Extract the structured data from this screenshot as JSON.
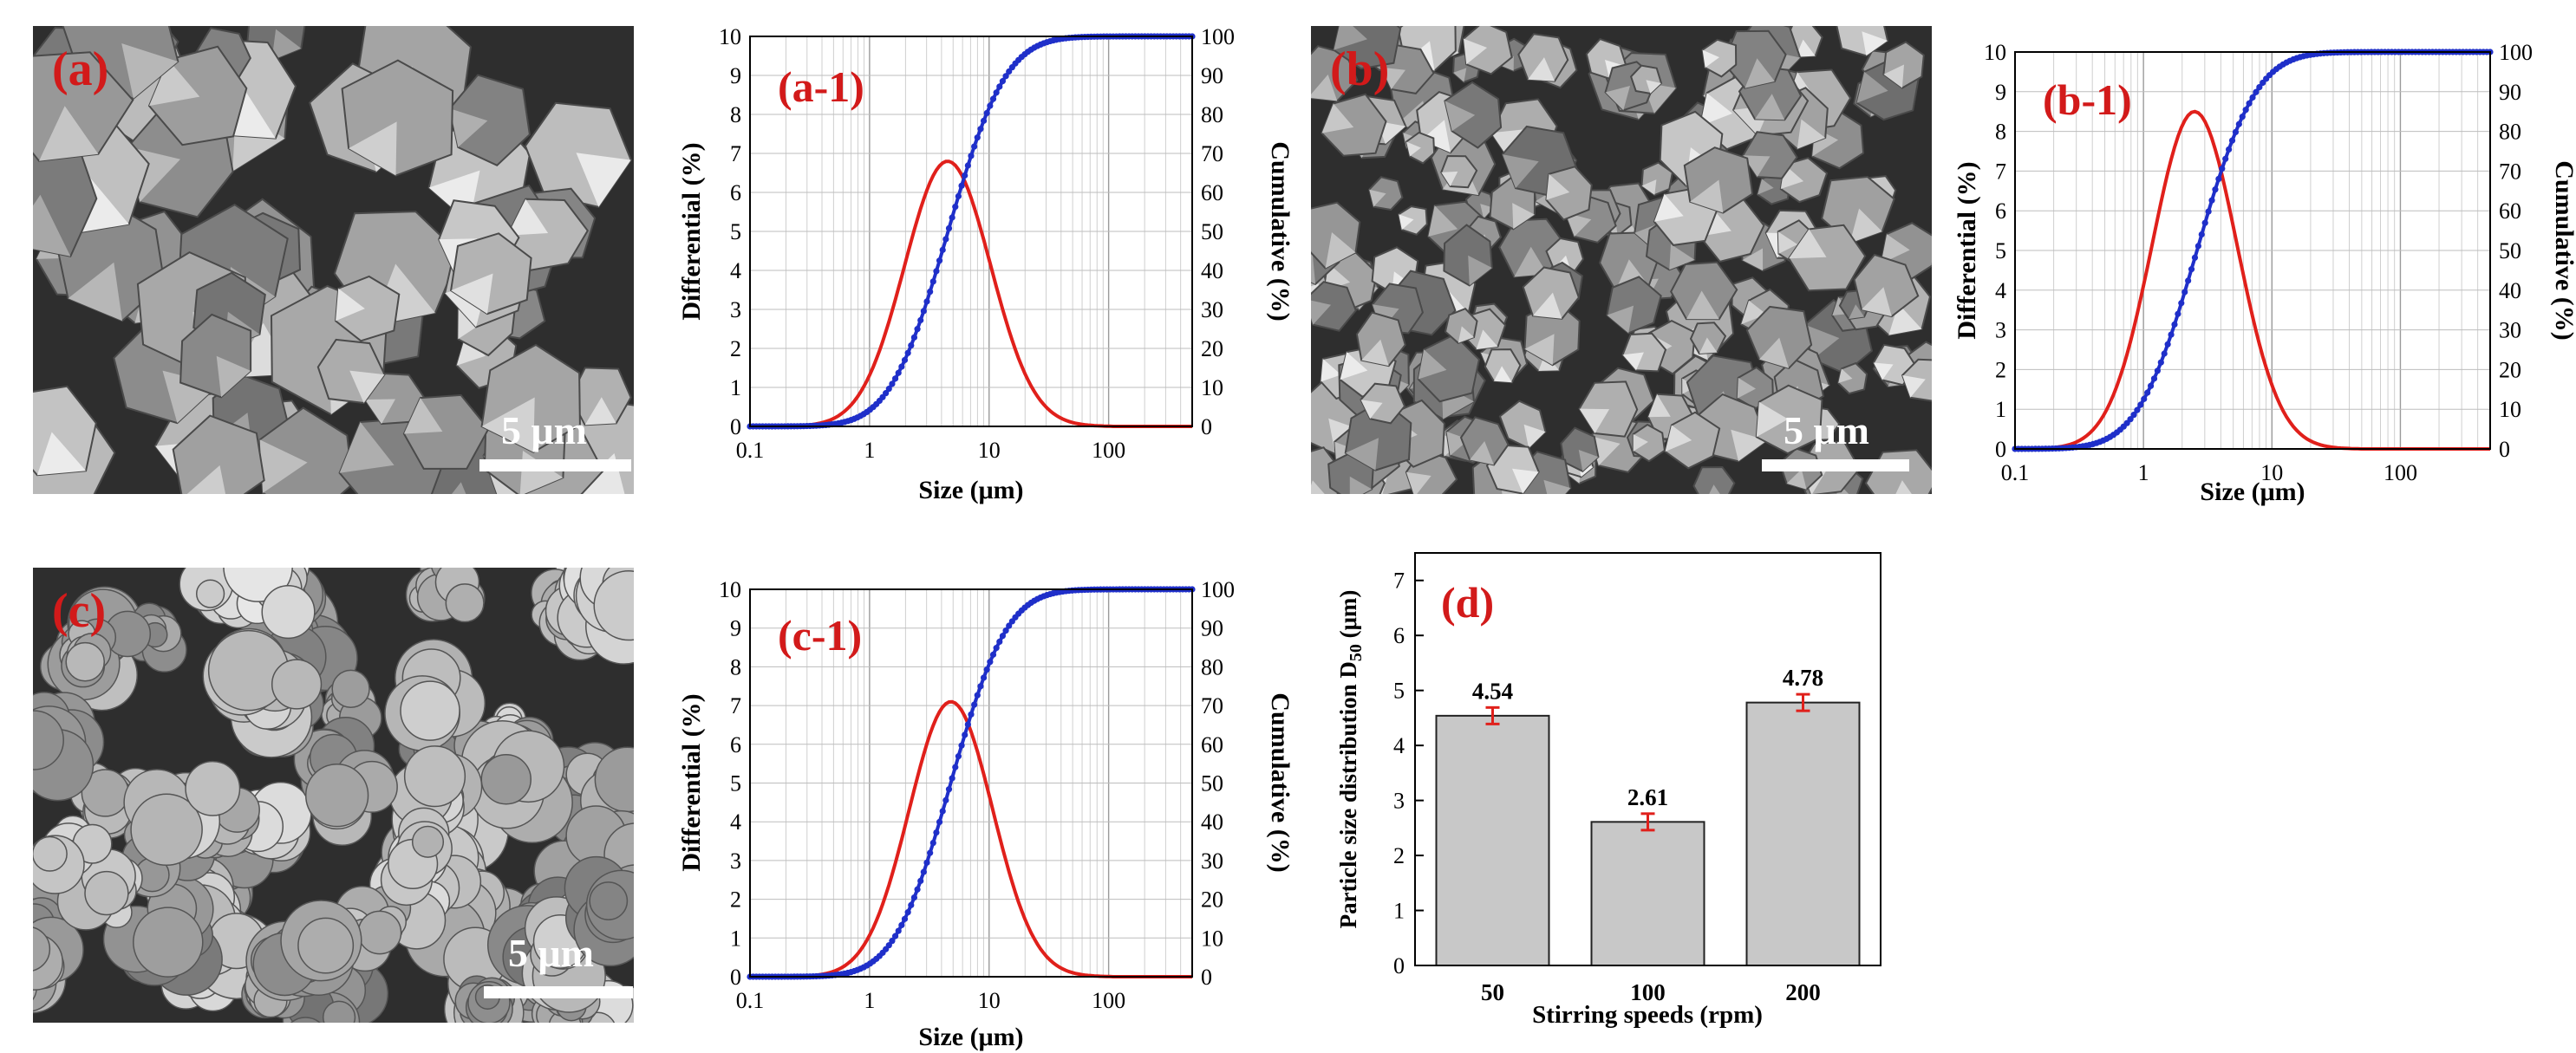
{
  "sem_images": [
    {
      "label": "(a)",
      "scale_bar": "5 μm",
      "morphology": "polyhedral"
    },
    {
      "label": "(b)",
      "scale_bar": "5 μm",
      "morphology": "small-polyhedral"
    },
    {
      "label": "(c)",
      "scale_bar": "5 μm",
      "morphology": "clustered"
    }
  ],
  "chart_data": [
    {
      "id": "a1",
      "type": "line",
      "label": "(a-1)",
      "xlabel": "Size (μm)",
      "ylabel_left": "Differential (%)",
      "ylabel_right": "Cumulative (%)",
      "xscale": "log",
      "xlim": [
        0.1,
        500
      ],
      "ylim_left": [
        0,
        10
      ],
      "ylim_right": [
        0,
        100
      ],
      "x_ticks": [
        "0.1",
        "1",
        "10",
        "100"
      ],
      "grid": true,
      "y_left_ticks": [
        "0",
        "1",
        "2",
        "3",
        "4",
        "5",
        "6",
        "7",
        "8",
        "9",
        "10"
      ],
      "y_right_ticks": [
        "0",
        "10",
        "20",
        "30",
        "40",
        "50",
        "60",
        "70",
        "80",
        "90",
        "100"
      ],
      "series": [
        {
          "name": "Differential",
          "axis": "left",
          "color": "#e0201b",
          "lognormal": {
            "mode": 4.5,
            "sigma": 0.36,
            "peak": 6.8
          }
        },
        {
          "name": "Cumulative",
          "axis": "right",
          "color": "#1f2fc9",
          "marker": "dot",
          "lognormal": {
            "median": 4.54,
            "sigma": 0.38
          }
        }
      ]
    },
    {
      "id": "b1",
      "type": "line",
      "label": "(b-1)",
      "xlabel": "Size (μm)",
      "ylabel_left": "Differential (%)",
      "ylabel_right": "Cumulative (%)",
      "xscale": "log",
      "xlim": [
        0.1,
        500
      ],
      "ylim_left": [
        0,
        10
      ],
      "ylim_right": [
        0,
        100
      ],
      "x_ticks": [
        "0.1",
        "1",
        "10",
        "100"
      ],
      "grid": true,
      "y_left_ticks": [
        "0",
        "1",
        "2",
        "3",
        "4",
        "5",
        "6",
        "7",
        "8",
        "9",
        "10"
      ],
      "y_right_ticks": [
        "0",
        "10",
        "20",
        "30",
        "40",
        "50",
        "60",
        "70",
        "80",
        "90",
        "100"
      ],
      "series": [
        {
          "name": "Differential",
          "axis": "left",
          "color": "#e0201b",
          "lognormal": {
            "mode": 2.5,
            "sigma": 0.33,
            "peak": 8.5
          }
        },
        {
          "name": "Cumulative",
          "axis": "right",
          "color": "#1f2fc9",
          "marker": "dot",
          "lognormal": {
            "median": 2.61,
            "sigma": 0.36
          }
        }
      ]
    },
    {
      "id": "c1",
      "type": "line",
      "label": "(c-1)",
      "xlabel": "Size (μm)",
      "ylabel_left": "Differential (%)",
      "ylabel_right": "Cumulative (%)",
      "xscale": "log",
      "xlim": [
        0.1,
        500
      ],
      "ylim_left": [
        0,
        10
      ],
      "ylim_right": [
        0,
        100
      ],
      "x_ticks": [
        "0.1",
        "1",
        "10",
        "100"
      ],
      "grid": true,
      "y_left_ticks": [
        "0",
        "1",
        "2",
        "3",
        "4",
        "5",
        "6",
        "7",
        "8",
        "9",
        "10"
      ],
      "y_right_ticks": [
        "0",
        "10",
        "20",
        "30",
        "40",
        "50",
        "60",
        "70",
        "80",
        "90",
        "100"
      ],
      "series": [
        {
          "name": "Differential",
          "axis": "left",
          "color": "#e0201b",
          "lognormal": {
            "mode": 4.8,
            "sigma": 0.35,
            "peak": 7.1
          }
        },
        {
          "name": "Cumulative",
          "axis": "right",
          "color": "#1f2fc9",
          "marker": "dot",
          "lognormal": {
            "median": 4.78,
            "sigma": 0.37
          }
        }
      ]
    },
    {
      "id": "d",
      "type": "bar",
      "label": "(d)",
      "xlabel": "Stirring speeds (rpm)",
      "ylabel_main": "Particle size distribution D",
      "ylabel_sub": "50",
      "ylabel_unit": " (μm)",
      "categories": [
        "50",
        "100",
        "200"
      ],
      "values": [
        4.54,
        2.61,
        4.78
      ],
      "value_labels": [
        "4.54",
        "2.61",
        "4.78"
      ],
      "errors": [
        0.15,
        0.15,
        0.15
      ],
      "ylim": [
        0,
        7.5
      ],
      "y_ticks": [
        "0",
        "1",
        "2",
        "3",
        "4",
        "5",
        "6",
        "7"
      ],
      "bar_color": "#c8c8c8",
      "error_color": "#e0201b"
    }
  ]
}
